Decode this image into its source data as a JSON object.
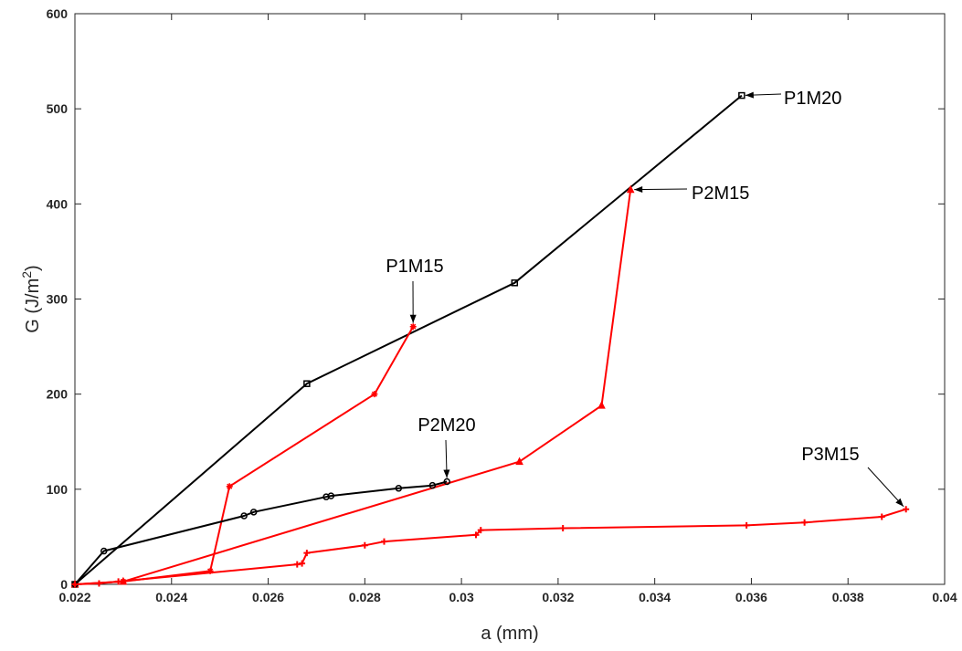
{
  "chart_data": {
    "type": "line",
    "title": "",
    "xlabel": "a (mm)",
    "ylabel_main": "G (J/m",
    "ylabel_sup": "2",
    "ylabel_close": ")",
    "xlim": [
      0.022,
      0.04
    ],
    "ylim": [
      0,
      600
    ],
    "x_ticks": [
      0.022,
      0.024,
      0.026,
      0.028,
      0.03,
      0.032,
      0.034,
      0.036,
      0.038,
      0.04
    ],
    "x_tick_labels": [
      "0.022",
      "0.024",
      "0.026",
      "0.028",
      "0.03",
      "0.032",
      "0.034",
      "0.036",
      "0.038",
      "0.04"
    ],
    "y_ticks": [
      0,
      100,
      200,
      300,
      400,
      500,
      600
    ],
    "y_tick_labels": [
      "0",
      "100",
      "200",
      "300",
      "400",
      "500",
      "600"
    ],
    "grid": false,
    "series": [
      {
        "name": "P1M20",
        "color": "#000000",
        "marker": "square",
        "x": [
          0.022,
          0.0268,
          0.0311,
          0.0358
        ],
        "y": [
          0,
          211,
          317,
          514
        ]
      },
      {
        "name": "P1M15",
        "color": "#ff0000",
        "marker": "star",
        "x": [
          0.022,
          0.023,
          0.0248,
          0.0252,
          0.0282,
          0.029
        ],
        "y": [
          0,
          3,
          14,
          103,
          200,
          271
        ]
      },
      {
        "name": "P2M15",
        "color": "#ff0000",
        "marker": "triangle",
        "x": [
          0.022,
          0.023,
          0.0312,
          0.0329,
          0.0335
        ],
        "y": [
          0,
          3,
          129,
          188,
          415
        ]
      },
      {
        "name": "P2M20",
        "color": "#000000",
        "marker": "circle",
        "x": [
          0.022,
          0.0226,
          0.0255,
          0.0257,
          0.0272,
          0.0273,
          0.0287,
          0.0294,
          0.0297
        ],
        "y": [
          0,
          35,
          72,
          76,
          92,
          93,
          101,
          104,
          108
        ]
      },
      {
        "name": "P3M15",
        "color": "#ff0000",
        "marker": "plus",
        "x": [
          0.022,
          0.0225,
          0.0229,
          0.0266,
          0.0267,
          0.0268,
          0.028,
          0.0284,
          0.0303,
          0.0304,
          0.0321,
          0.0359,
          0.0371,
          0.0387,
          0.0392
        ],
        "y": [
          0,
          1,
          3,
          21,
          22,
          33,
          41,
          45,
          52,
          57,
          59,
          62,
          65,
          71,
          79
        ]
      }
    ],
    "annotations": [
      {
        "text": "P1M20",
        "point": [
          0.0358,
          514
        ]
      },
      {
        "text": "P2M15",
        "point": [
          0.0335,
          415
        ]
      },
      {
        "text": "P1M15",
        "point": [
          0.029,
          271
        ]
      },
      {
        "text": "P2M20",
        "point": [
          0.0297,
          108
        ]
      },
      {
        "text": "P3M15",
        "point": [
          0.0392,
          79
        ]
      }
    ]
  }
}
